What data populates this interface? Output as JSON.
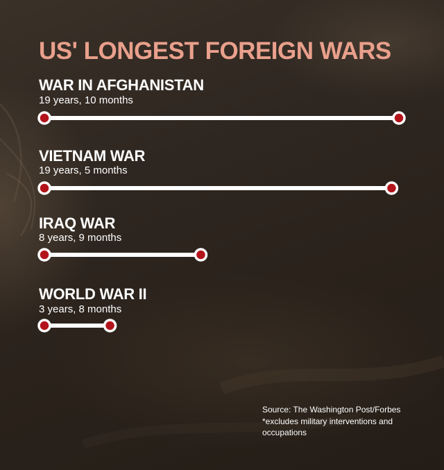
{
  "chart_data": {
    "type": "bar",
    "title": "US' LONGEST FOREIGN WARS",
    "categories": [
      "WAR IN AFGHANISTAN",
      "VIETNAM WAR",
      "IRAQ WAR",
      "WORLD WAR II"
    ],
    "labels": [
      "19 years, 10 months",
      "19 years, 5 months",
      "8 years, 9 months",
      "3 years, 8 months"
    ],
    "values": [
      19.83,
      19.42,
      8.75,
      3.67
    ],
    "unit": "years",
    "orientation": "horizontal",
    "grid": false,
    "colors": {
      "title": "#e9a08c",
      "line": "#ffffff",
      "dot": "#b3141b"
    }
  },
  "source": "Source: The Washington Post/Forbes",
  "note_line1": "*excludes military interventions and",
  "note_line2": "occupations"
}
